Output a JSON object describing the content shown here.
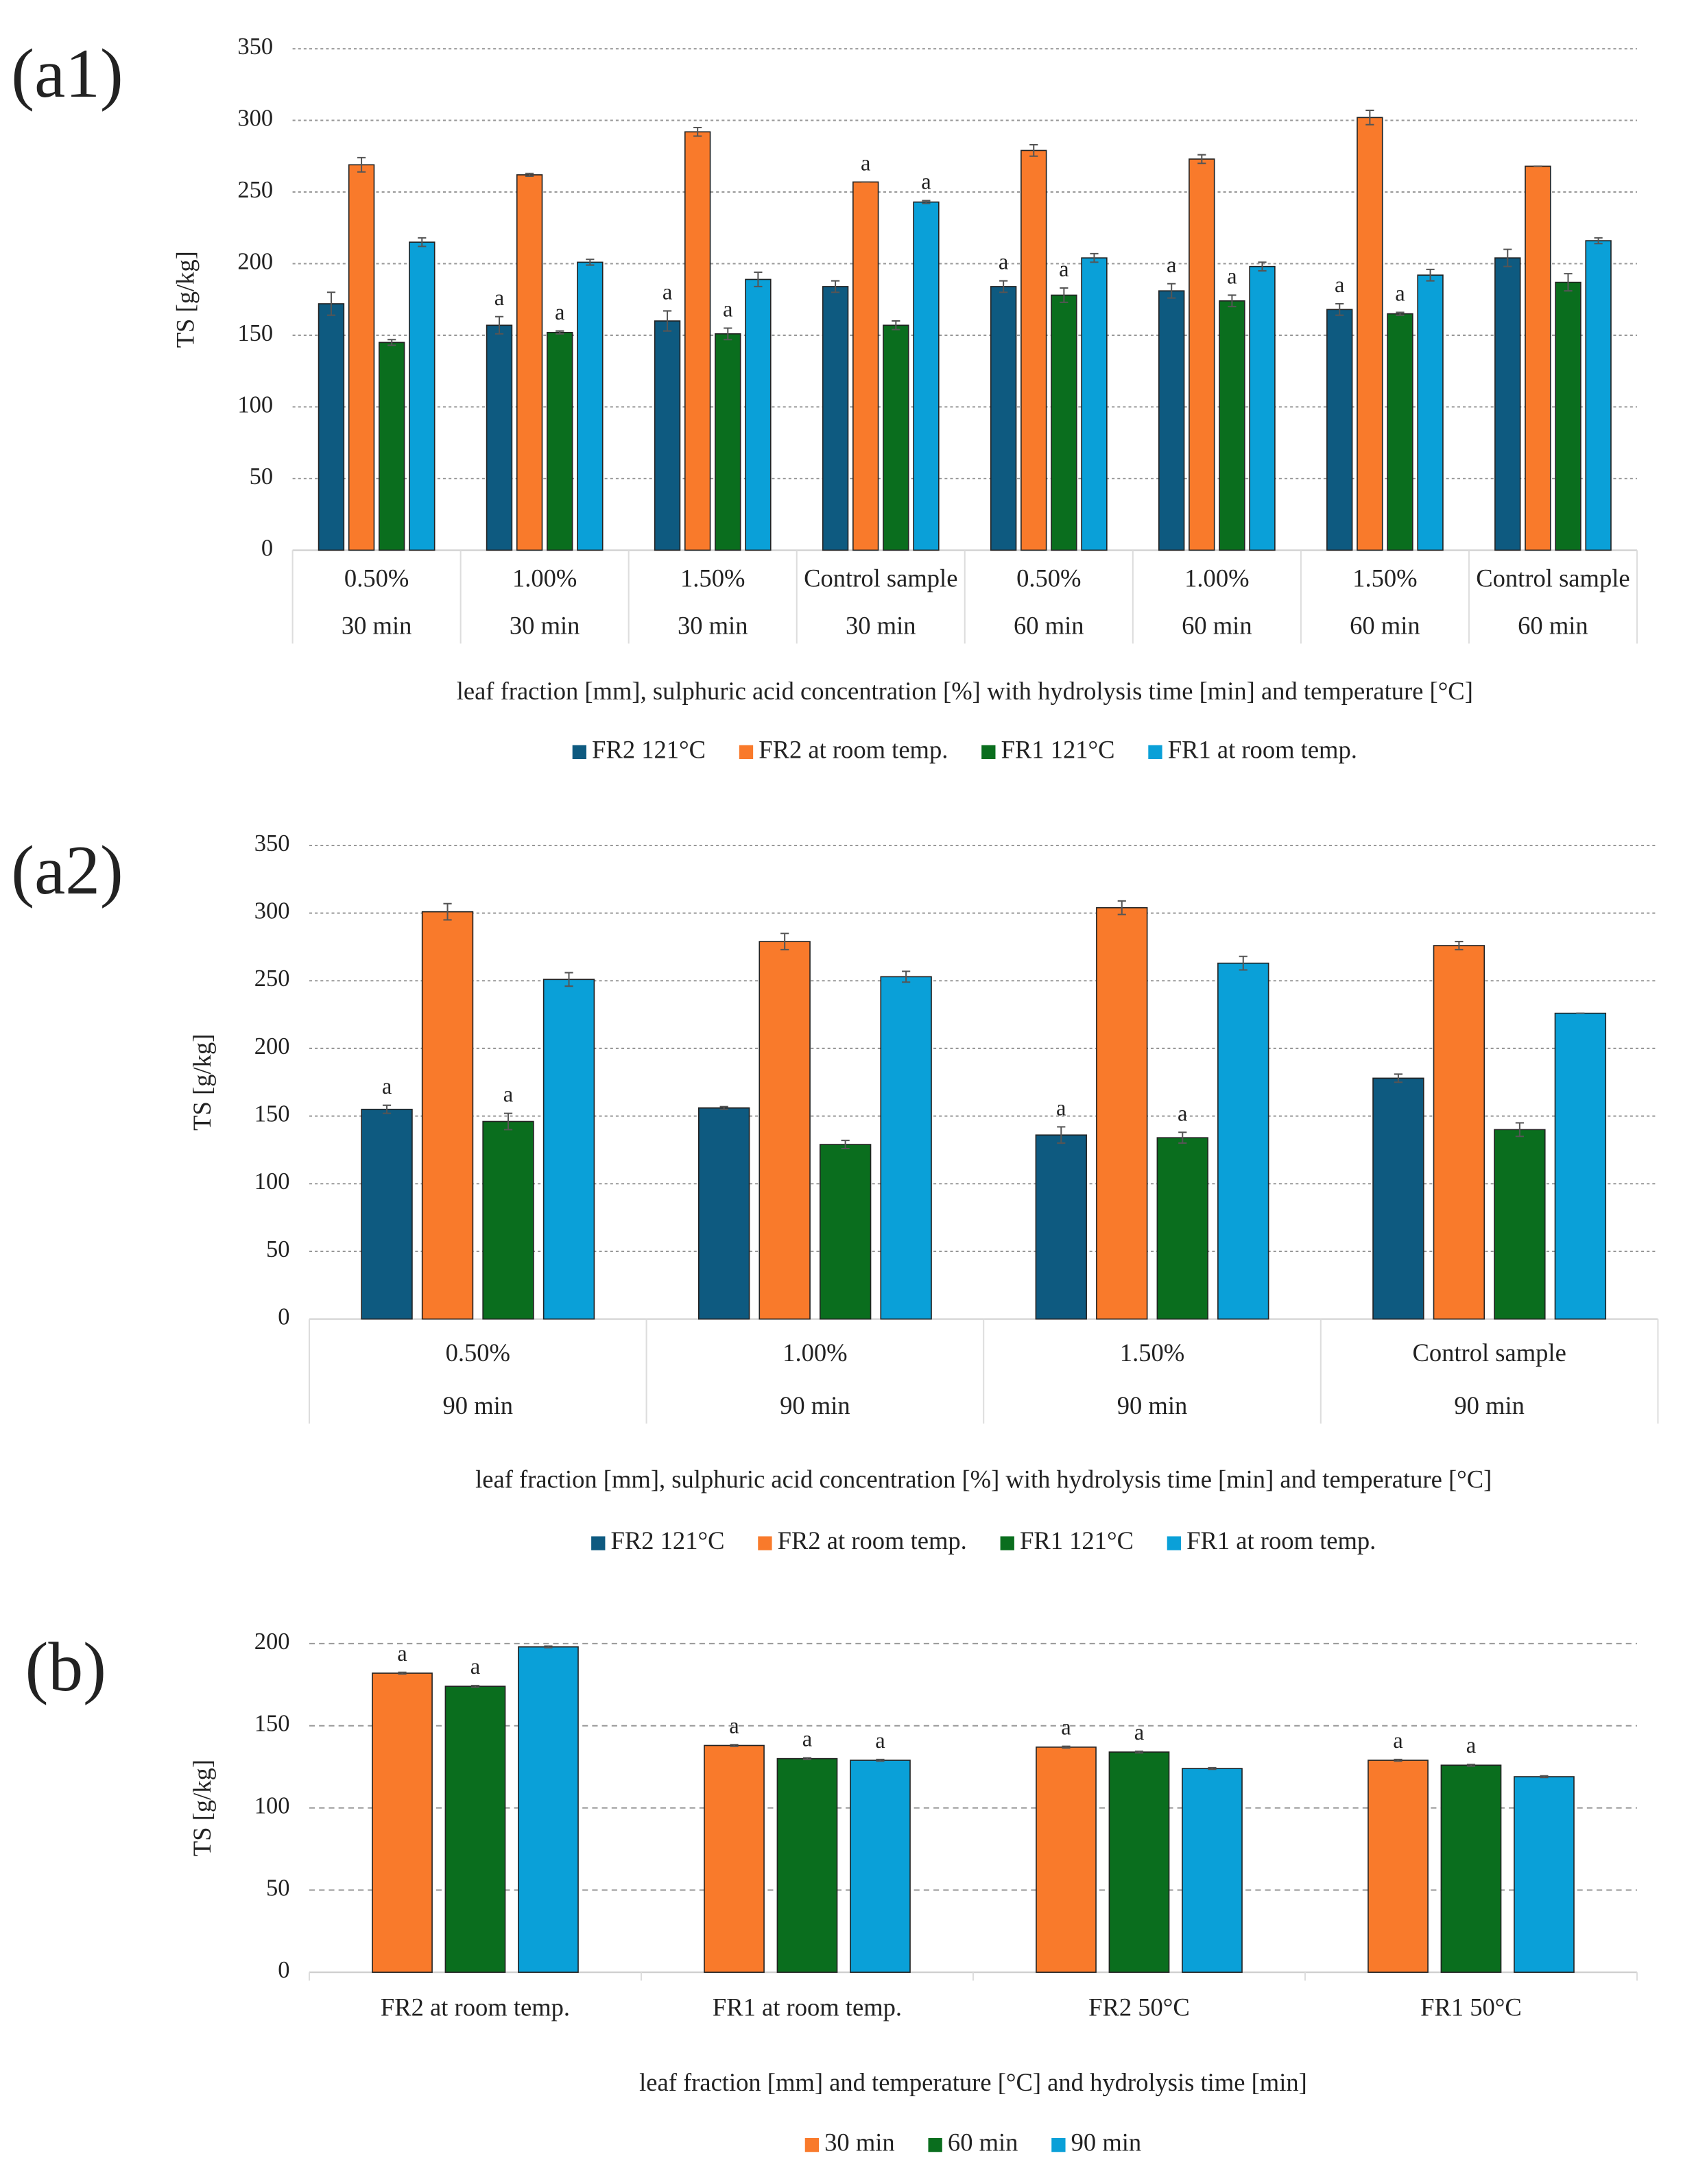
{
  "chart_data": [
    {
      "type": "bar",
      "panel_label": "(a1)",
      "y_label": "TS [g/kg]",
      "x_label": "leaf fraction [mm], sulphuric acid concentration [%] with hydrolysis time [min] and temperature [°C]",
      "categories": [
        [
          "0.50%",
          "30 min"
        ],
        [
          "1.00%",
          "30 min"
        ],
        [
          "1.50%",
          "30 min"
        ],
        [
          "Control sample",
          "30 min"
        ],
        [
          "0.50%",
          "60 min"
        ],
        [
          "1.00%",
          "60 min"
        ],
        [
          "1.50%",
          "60 min"
        ],
        [
          "Control sample",
          "60 min"
        ]
      ],
      "series": [
        {
          "name": "FR2 121°C",
          "color": "#0e5a80",
          "values": [
            172,
            157,
            160,
            184,
            184,
            181,
            168,
            204
          ],
          "errors": [
            8,
            6,
            7,
            4,
            4,
            5,
            4,
            6
          ],
          "annotations": [
            null,
            "a",
            "a",
            null,
            "a",
            "a",
            "a",
            null
          ]
        },
        {
          "name": "FR2 at room temp.",
          "color": "#f97a2b",
          "values": [
            269,
            262,
            292,
            257,
            279,
            273,
            302,
            268
          ],
          "errors": [
            5,
            1,
            3,
            0,
            4,
            3,
            5,
            0
          ],
          "annotations": [
            null,
            null,
            null,
            "a",
            null,
            null,
            null,
            null
          ]
        },
        {
          "name": "FR1 121°C",
          "color": "#0a6e1e",
          "values": [
            145,
            152,
            151,
            157,
            178,
            174,
            165,
            187
          ],
          "errors": [
            2,
            1,
            4,
            3,
            5,
            4,
            1,
            6
          ],
          "annotations": [
            null,
            "a",
            "a",
            null,
            "a",
            "a",
            "a",
            null
          ]
        },
        {
          "name": "FR1 at room temp.",
          "color": "#0aa0d8",
          "values": [
            215,
            201,
            189,
            243,
            204,
            198,
            192,
            216
          ],
          "errors": [
            3,
            2,
            5,
            1,
            3,
            3,
            4,
            2
          ],
          "annotations": [
            null,
            null,
            null,
            "a",
            null,
            null,
            null,
            null
          ]
        }
      ],
      "ylim": [
        0,
        350
      ],
      "yticks": [
        0,
        50,
        100,
        150,
        200,
        250,
        300,
        350
      ],
      "grid": true,
      "grid_style": "dotted",
      "legend": "bottom"
    },
    {
      "type": "bar",
      "panel_label": "(a2)",
      "y_label": "TS [g/kg]",
      "x_label": "leaf fraction [mm], sulphuric acid concentration [%] with hydrolysis time [min] and temperature [°C]",
      "categories": [
        [
          "0.50%",
          "90 min"
        ],
        [
          "1.00%",
          "90 min"
        ],
        [
          "1.50%",
          "90 min"
        ],
        [
          "Control sample",
          "90 min"
        ]
      ],
      "series": [
        {
          "name": "FR2 121°C",
          "color": "#0e5a80",
          "values": [
            155,
            156,
            136,
            178
          ],
          "errors": [
            3,
            1,
            6,
            3
          ],
          "annotations": [
            "a",
            null,
            "a",
            null
          ]
        },
        {
          "name": "FR2 at room temp.",
          "color": "#f97a2b",
          "values": [
            301,
            279,
            304,
            276
          ],
          "errors": [
            6,
            6,
            5,
            3
          ],
          "annotations": [
            null,
            null,
            null,
            null
          ]
        },
        {
          "name": "FR1 121°C",
          "color": "#0a6e1e",
          "values": [
            146,
            129,
            134,
            140
          ],
          "errors": [
            6,
            3,
            4,
            5
          ],
          "annotations": [
            "a",
            null,
            "a",
            null
          ]
        },
        {
          "name": "FR1 at room temp.",
          "color": "#0aa0d8",
          "values": [
            251,
            253,
            263,
            226
          ],
          "errors": [
            5,
            4,
            5,
            0
          ],
          "annotations": [
            null,
            null,
            null,
            null
          ]
        }
      ],
      "ylim": [
        0,
        350
      ],
      "yticks": [
        0,
        50,
        100,
        150,
        200,
        250,
        300,
        350
      ],
      "grid": true,
      "grid_style": "dotted",
      "legend": "bottom"
    },
    {
      "type": "bar",
      "panel_label": "(b)",
      "y_label": "TS [g/kg]",
      "x_label": "leaf fraction [mm] and temperature [°C] and hydrolysis time [min]",
      "categories": [
        "FR2 at room temp.",
        "FR1 at room temp.",
        "FR2 50°C",
        "FR1 50°C"
      ],
      "series": [
        {
          "name": "30 min",
          "color": "#f97a2b",
          "values": [
            182,
            138,
            137,
            129
          ],
          "errors": [
            0.5,
            0.5,
            0.5,
            0.5
          ],
          "annotations": [
            "a",
            "a",
            "a",
            "a"
          ]
        },
        {
          "name": "60 min",
          "color": "#0a6e1e",
          "values": [
            174,
            130,
            134,
            126
          ],
          "errors": [
            0.5,
            0.5,
            0.5,
            0.5
          ],
          "annotations": [
            "a",
            "a",
            "a",
            "a"
          ]
        },
        {
          "name": "90 min",
          "color": "#0aa0d8",
          "values": [
            198,
            129,
            124,
            119
          ],
          "errors": [
            0.5,
            0.5,
            0.5,
            0.5
          ],
          "annotations": [
            null,
            "a",
            null,
            null
          ]
        }
      ],
      "ylim": [
        0,
        200
      ],
      "yticks": [
        0,
        50,
        100,
        150,
        200
      ],
      "grid": true,
      "grid_style": "dashed",
      "legend": "bottom"
    }
  ]
}
